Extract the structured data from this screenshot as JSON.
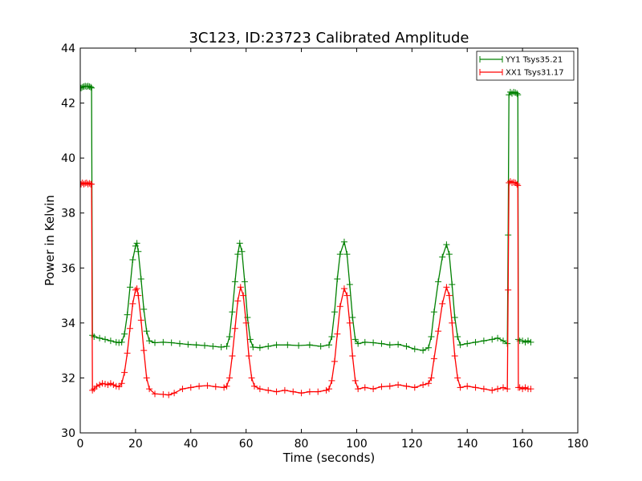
{
  "chart_data": {
    "type": "line",
    "title": "3C123, ID:23723 Calibrated Amplitude",
    "xlabel": "Time (seconds)",
    "ylabel": "Power in Kelvin",
    "xlim": [
      0,
      180
    ],
    "ylim": [
      30,
      44
    ],
    "xticks": [
      0,
      20,
      40,
      60,
      80,
      100,
      120,
      140,
      160,
      180
    ],
    "yticks": [
      30,
      32,
      34,
      36,
      38,
      40,
      42,
      44
    ],
    "grid": false,
    "legend_position": "top-right",
    "marker": "+",
    "series": [
      {
        "name": "YY1 Tsys35.21",
        "color": "#008000",
        "points": [
          [
            0.3,
            42.55
          ],
          [
            0.8,
            42.58
          ],
          [
            1.3,
            42.6
          ],
          [
            1.8,
            42.62
          ],
          [
            2.3,
            42.6
          ],
          [
            2.8,
            42.62
          ],
          [
            3.3,
            42.6
          ],
          [
            3.8,
            42.58
          ],
          [
            4.1,
            42.55
          ],
          [
            4.4,
            33.55
          ],
          [
            5,
            33.5
          ],
          [
            7,
            33.45
          ],
          [
            9,
            33.4
          ],
          [
            11,
            33.35
          ],
          [
            13,
            33.3
          ],
          [
            14,
            33.28
          ],
          [
            15,
            33.3
          ],
          [
            16,
            33.6
          ],
          [
            17,
            34.3
          ],
          [
            18,
            35.3
          ],
          [
            19,
            36.3
          ],
          [
            20,
            36.8
          ],
          [
            20.5,
            36.9
          ],
          [
            21,
            36.6
          ],
          [
            22,
            35.6
          ],
          [
            23,
            34.5
          ],
          [
            24,
            33.7
          ],
          [
            25,
            33.35
          ],
          [
            27,
            33.28
          ],
          [
            30,
            33.3
          ],
          [
            33,
            33.28
          ],
          [
            36,
            33.25
          ],
          [
            39,
            33.22
          ],
          [
            42,
            33.2
          ],
          [
            45,
            33.18
          ],
          [
            48,
            33.15
          ],
          [
            51,
            33.12
          ],
          [
            53,
            33.15
          ],
          [
            54,
            33.5
          ],
          [
            55,
            34.4
          ],
          [
            56,
            35.5
          ],
          [
            57,
            36.5
          ],
          [
            57.7,
            36.9
          ],
          [
            58.5,
            36.6
          ],
          [
            59.5,
            35.5
          ],
          [
            60.5,
            34.2
          ],
          [
            61.5,
            33.4
          ],
          [
            62.5,
            33.12
          ],
          [
            65,
            33.1
          ],
          [
            68,
            33.15
          ],
          [
            71,
            33.2
          ],
          [
            75,
            33.2
          ],
          [
            79,
            33.18
          ],
          [
            83,
            33.2
          ],
          [
            87,
            33.15
          ],
          [
            90,
            33.2
          ],
          [
            91,
            33.5
          ],
          [
            92,
            34.4
          ],
          [
            93,
            35.6
          ],
          [
            94,
            36.5
          ],
          [
            95.5,
            36.95
          ],
          [
            96.5,
            36.5
          ],
          [
            97.5,
            35.4
          ],
          [
            98.5,
            34.2
          ],
          [
            99.5,
            33.4
          ],
          [
            100.5,
            33.25
          ],
          [
            103,
            33.3
          ],
          [
            106,
            33.28
          ],
          [
            109,
            33.25
          ],
          [
            112,
            33.2
          ],
          [
            115,
            33.22
          ],
          [
            118,
            33.15
          ],
          [
            121,
            33.05
          ],
          [
            124,
            33.0
          ],
          [
            126,
            33.1
          ],
          [
            127,
            33.5
          ],
          [
            128,
            34.4
          ],
          [
            129.5,
            35.5
          ],
          [
            131,
            36.4
          ],
          [
            132.5,
            36.85
          ],
          [
            133.5,
            36.5
          ],
          [
            134.5,
            35.4
          ],
          [
            135.5,
            34.2
          ],
          [
            136.5,
            33.5
          ],
          [
            137.5,
            33.2
          ],
          [
            140,
            33.25
          ],
          [
            143,
            33.3
          ],
          [
            146,
            33.35
          ],
          [
            149,
            33.4
          ],
          [
            151,
            33.45
          ],
          [
            153,
            33.35
          ],
          [
            154.5,
            33.25
          ],
          [
            154.8,
            37.2
          ],
          [
            155.1,
            42.3
          ],
          [
            155.6,
            42.4
          ],
          [
            156.2,
            42.35
          ],
          [
            156.8,
            42.4
          ],
          [
            157.4,
            42.38
          ],
          [
            158,
            42.35
          ],
          [
            158.3,
            42.3
          ],
          [
            158.5,
            33.4
          ],
          [
            159,
            33.35
          ],
          [
            160,
            33.35
          ],
          [
            161,
            33.3
          ],
          [
            162,
            33.35
          ],
          [
            163,
            33.3
          ]
        ]
      },
      {
        "name": "XX1 Tsys31.17",
        "color": "#ff0000",
        "points": [
          [
            0.3,
            39.05
          ],
          [
            0.8,
            39.1
          ],
          [
            1.3,
            39.05
          ],
          [
            1.8,
            39.08
          ],
          [
            2.3,
            39.1
          ],
          [
            2.8,
            39.05
          ],
          [
            3.3,
            39.08
          ],
          [
            3.8,
            39.05
          ],
          [
            4.1,
            39.05
          ],
          [
            4.4,
            31.55
          ],
          [
            5,
            31.6
          ],
          [
            6,
            31.7
          ],
          [
            7,
            31.75
          ],
          [
            8,
            31.8
          ],
          [
            9,
            31.78
          ],
          [
            10,
            31.75
          ],
          [
            11,
            31.8
          ],
          [
            12,
            31.75
          ],
          [
            13,
            31.7
          ],
          [
            14,
            31.68
          ],
          [
            15,
            31.8
          ],
          [
            16,
            32.2
          ],
          [
            17,
            32.9
          ],
          [
            18,
            33.8
          ],
          [
            19,
            34.7
          ],
          [
            20,
            35.2
          ],
          [
            20.5,
            35.25
          ],
          [
            21,
            35.0
          ],
          [
            22,
            34.1
          ],
          [
            23,
            33.0
          ],
          [
            24,
            32.0
          ],
          [
            25,
            31.6
          ],
          [
            27,
            31.42
          ],
          [
            30,
            31.4
          ],
          [
            32,
            31.38
          ],
          [
            34,
            31.45
          ],
          [
            37,
            31.6
          ],
          [
            40,
            31.65
          ],
          [
            43,
            31.7
          ],
          [
            46,
            31.72
          ],
          [
            49,
            31.68
          ],
          [
            52,
            31.65
          ],
          [
            53,
            31.7
          ],
          [
            54,
            32.0
          ],
          [
            55,
            32.8
          ],
          [
            56,
            33.8
          ],
          [
            57,
            34.8
          ],
          [
            58,
            35.3
          ],
          [
            59,
            35.0
          ],
          [
            60,
            34.0
          ],
          [
            61,
            32.8
          ],
          [
            62,
            32.0
          ],
          [
            63,
            31.7
          ],
          [
            65,
            31.6
          ],
          [
            68,
            31.55
          ],
          [
            71,
            31.5
          ],
          [
            74,
            31.55
          ],
          [
            77,
            31.5
          ],
          [
            80,
            31.45
          ],
          [
            83,
            31.5
          ],
          [
            86,
            31.5
          ],
          [
            89,
            31.55
          ],
          [
            90,
            31.6
          ],
          [
            91,
            31.9
          ],
          [
            92,
            32.6
          ],
          [
            93,
            33.6
          ],
          [
            94,
            34.6
          ],
          [
            95.5,
            35.25
          ],
          [
            96.5,
            35.0
          ],
          [
            97.5,
            34.0
          ],
          [
            98.5,
            32.8
          ],
          [
            99.5,
            31.9
          ],
          [
            100.5,
            31.6
          ],
          [
            103,
            31.65
          ],
          [
            106,
            31.6
          ],
          [
            109,
            31.68
          ],
          [
            112,
            31.7
          ],
          [
            115,
            31.75
          ],
          [
            118,
            31.7
          ],
          [
            121,
            31.65
          ],
          [
            124,
            31.75
          ],
          [
            126,
            31.8
          ],
          [
            127,
            32.0
          ],
          [
            128,
            32.7
          ],
          [
            129.5,
            33.7
          ],
          [
            131,
            34.7
          ],
          [
            132.5,
            35.3
          ],
          [
            133.5,
            35.0
          ],
          [
            134.5,
            34.0
          ],
          [
            135.5,
            32.8
          ],
          [
            136.5,
            32.0
          ],
          [
            137.5,
            31.65
          ],
          [
            140,
            31.7
          ],
          [
            143,
            31.65
          ],
          [
            146,
            31.6
          ],
          [
            149,
            31.55
          ],
          [
            151,
            31.6
          ],
          [
            153,
            31.65
          ],
          [
            154.5,
            31.6
          ],
          [
            154.8,
            35.2
          ],
          [
            155.1,
            39.1
          ],
          [
            155.6,
            39.15
          ],
          [
            156.2,
            39.1
          ],
          [
            156.8,
            39.12
          ],
          [
            157.4,
            39.1
          ],
          [
            158,
            39.05
          ],
          [
            158.3,
            39.0
          ],
          [
            158.5,
            31.65
          ],
          [
            159,
            31.65
          ],
          [
            160,
            31.6
          ],
          [
            161,
            31.65
          ],
          [
            162,
            31.6
          ],
          [
            163,
            31.6
          ]
        ]
      }
    ]
  }
}
